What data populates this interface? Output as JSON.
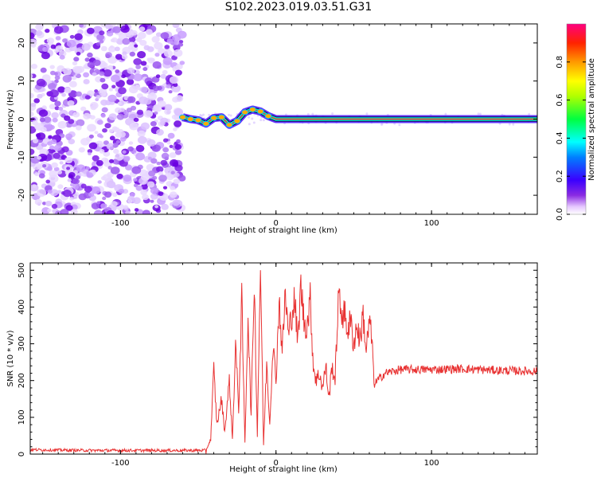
{
  "title": "S102.2023.019.03.51.G31",
  "chart_data": [
    {
      "type": "heatmap",
      "xlabel": "Height of straight line (km)",
      "ylabel": "Frequency (Hz)",
      "xlim": [
        -158,
        168
      ],
      "ylim": [
        -25,
        25
      ],
      "xticks": [
        -100,
        0,
        100
      ],
      "yticks": [
        -20,
        -10,
        0,
        10,
        20
      ],
      "noise_region": [
        -158,
        -60
      ],
      "ridge": {
        "x": [
          -60,
          -55,
          -50,
          -45,
          -40,
          -35,
          -30,
          -25,
          -20,
          -15,
          -10,
          -5,
          0,
          10,
          50,
          90,
          130,
          168
        ],
        "freq": [
          0.5,
          0.0,
          -0.3,
          -1.2,
          0.3,
          0.5,
          -1.5,
          -0.5,
          1.8,
          2.5,
          2.0,
          0.8,
          0.0,
          0.0,
          0.0,
          0.0,
          0.0,
          0.0
        ]
      },
      "colorbar": {
        "label": "Normalized spectral amplitude",
        "range": [
          0.0,
          1.0
        ],
        "ticks": [
          "0.0",
          "0.2",
          "0.4",
          "0.6",
          "0.8"
        ],
        "colormap": "gist_rainbow_r"
      }
    },
    {
      "type": "line",
      "xlabel": "Height of straight line (km)",
      "ylabel": "SNR (10 * v/v)",
      "xlim": [
        -158,
        168
      ],
      "ylim": [
        0,
        520
      ],
      "xticks": [
        -100,
        0,
        100
      ],
      "yticks": [
        0,
        100,
        200,
        300,
        400,
        500
      ],
      "color": "#e83232",
      "series": [
        {
          "x": [
            -158,
            -120,
            -80,
            -45,
            -42,
            -40,
            -38,
            -35,
            -33,
            -30,
            -28,
            -26,
            -24,
            -22,
            -20,
            -18,
            -16,
            -14,
            -12,
            -10,
            -8,
            -6,
            -4,
            -2,
            0,
            2,
            4,
            6,
            8,
            10,
            12,
            14,
            16,
            18,
            20,
            22,
            24,
            26,
            28,
            30,
            32,
            34,
            36,
            38,
            40,
            42,
            44,
            46,
            48,
            50,
            52,
            54,
            56,
            58,
            60,
            62,
            63,
            70,
            80,
            100,
            120,
            140,
            168
          ],
          "values": [
            12,
            10,
            10,
            10,
            40,
            230,
            80,
            150,
            60,
            200,
            40,
            300,
            120,
            420,
            30,
            380,
            100,
            480,
            50,
            520,
            25,
            250,
            80,
            300,
            200,
            420,
            280,
            440,
            320,
            380,
            420,
            300,
            460,
            360,
            350,
            420,
            240,
            200,
            220,
            180,
            240,
            150,
            240,
            200,
            420,
            390,
            380,
            340,
            360,
            300,
            350,
            310,
            380,
            280,
            360,
            300,
            190,
            220,
            230,
            230,
            232,
            228,
            225
          ]
        }
      ]
    }
  ]
}
